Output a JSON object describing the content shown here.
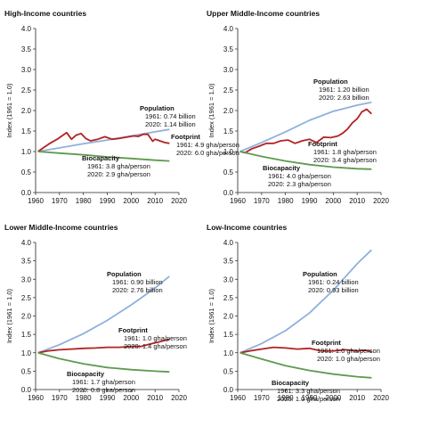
{
  "chart_data": [
    {
      "type": "line",
      "title": "High-Income countries",
      "xlabel": "",
      "ylabel": "Index (1961 = 1.0)",
      "xlim": [
        1960,
        2020
      ],
      "ylim": [
        0,
        4
      ],
      "xticks": [
        "1960",
        "1970",
        "1980",
        "1990",
        "2000",
        "2010",
        "2020"
      ],
      "yticks": [
        "0.0",
        "0.5",
        "1.0",
        "1.5",
        "2.0",
        "2.5",
        "3.0",
        "3.5",
        "4.0"
      ],
      "series": [
        {
          "name": "Population",
          "color": "#8fb0dd",
          "x": [
            1961,
            1970,
            1980,
            1990,
            2000,
            2010,
            2016
          ],
          "y": [
            1.0,
            1.09,
            1.19,
            1.28,
            1.38,
            1.48,
            1.54
          ]
        },
        {
          "name": "Footprint",
          "color": "#b22222",
          "x": [
            1961,
            1963,
            1966,
            1969,
            1971,
            1973,
            1975,
            1977,
            1979,
            1981,
            1983,
            1986,
            1989,
            1992,
            1995,
            1998,
            2001,
            2003,
            2005,
            2007,
            2009,
            2010,
            2012,
            2014,
            2016
          ],
          "y": [
            1.0,
            1.08,
            1.2,
            1.3,
            1.38,
            1.46,
            1.3,
            1.4,
            1.44,
            1.32,
            1.26,
            1.3,
            1.36,
            1.3,
            1.32,
            1.35,
            1.38,
            1.37,
            1.42,
            1.42,
            1.25,
            1.3,
            1.26,
            1.22,
            1.2
          ]
        },
        {
          "name": "Biocapacity",
          "color": "#5e9a4e",
          "x": [
            1961,
            1970,
            1980,
            1990,
            2000,
            2010,
            2016
          ],
          "y": [
            1.0,
            0.96,
            0.92,
            0.87,
            0.83,
            0.79,
            0.77
          ]
        }
      ],
      "annotations": [
        {
          "label": "Population",
          "lines": [
            "1961: 0.74 billion",
            "2020: 1.14 billion"
          ]
        },
        {
          "label": "Footprint",
          "lines": [
            "1961: 4.9 gha/person",
            "2020: 6.0 gha/person"
          ]
        },
        {
          "label": "Biocapacity",
          "lines": [
            "1961: 3.8 gha/person",
            "2020: 2.9 gha/person"
          ]
        }
      ]
    },
    {
      "type": "line",
      "title": "Upper Middle-Income countries",
      "xlabel": "",
      "ylabel": "Index (1961 = 1.0)",
      "xlim": [
        1960,
        2020
      ],
      "ylim": [
        0,
        4
      ],
      "xticks": [
        "1960",
        "1970",
        "1980",
        "1990",
        "2000",
        "2010",
        "2020"
      ],
      "yticks": [
        "0.0",
        "0.5",
        "1.0",
        "1.5",
        "2.0",
        "2.5",
        "3.0",
        "3.5",
        "4.0"
      ],
      "series": [
        {
          "name": "Population",
          "color": "#8fb0dd",
          "x": [
            1961,
            1970,
            1980,
            1990,
            2000,
            2010,
            2016
          ],
          "y": [
            1.0,
            1.22,
            1.48,
            1.76,
            1.98,
            2.13,
            2.2
          ]
        },
        {
          "name": "Footprint",
          "color": "#b22222",
          "x": [
            1961,
            1963,
            1966,
            1969,
            1972,
            1975,
            1978,
            1981,
            1984,
            1987,
            1990,
            1993,
            1996,
            1999,
            2002,
            2004,
            2006,
            2008,
            2010,
            2012,
            2014,
            2016
          ],
          "y": [
            1.0,
            0.97,
            1.07,
            1.13,
            1.2,
            1.2,
            1.26,
            1.28,
            1.2,
            1.26,
            1.3,
            1.22,
            1.35,
            1.34,
            1.38,
            1.45,
            1.55,
            1.7,
            1.8,
            1.97,
            2.03,
            1.92
          ]
        },
        {
          "name": "Biocapacity",
          "color": "#5e9a4e",
          "x": [
            1961,
            1970,
            1980,
            1990,
            2000,
            2010,
            2016
          ],
          "y": [
            1.0,
            0.88,
            0.77,
            0.68,
            0.62,
            0.58,
            0.57
          ]
        }
      ],
      "annotations": [
        {
          "label": "Population",
          "lines": [
            "1961: 1.20 billion",
            "2020: 2.63 billion"
          ]
        },
        {
          "label": "Footprint",
          "lines": [
            "1961: 1.8 gha/person",
            "2020: 3.4 gha/person"
          ]
        },
        {
          "label": "Biocapacity",
          "lines": [
            "1961: 4.0 gha/person",
            "2020: 2.3 gha/person"
          ]
        }
      ]
    },
    {
      "type": "line",
      "title": "Lower Middle-Income countries",
      "xlabel": "",
      "ylabel": "Index (1961 = 1.0)",
      "xlim": [
        1960,
        2020
      ],
      "ylim": [
        0,
        4
      ],
      "xticks": [
        "1960",
        "1970",
        "1980",
        "1990",
        "2000",
        "2010",
        "2020"
      ],
      "yticks": [
        "0.0",
        "0.5",
        "1.0",
        "1.5",
        "2.0",
        "2.5",
        "3.0",
        "3.5",
        "4.0"
      ],
      "series": [
        {
          "name": "Population",
          "color": "#8fb0dd",
          "x": [
            1961,
            1970,
            1980,
            1990,
            2000,
            2010,
            2016
          ],
          "y": [
            1.0,
            1.22,
            1.52,
            1.88,
            2.3,
            2.76,
            3.08
          ]
        },
        {
          "name": "Footprint",
          "color": "#b22222",
          "x": [
            1961,
            1965,
            1970,
            1975,
            1980,
            1985,
            1990,
            1995,
            2000,
            2004,
            2008,
            2012,
            2016
          ],
          "y": [
            1.0,
            1.05,
            1.08,
            1.1,
            1.12,
            1.13,
            1.15,
            1.15,
            1.17,
            1.17,
            1.24,
            1.3,
            1.37
          ]
        },
        {
          "name": "Biocapacity",
          "color": "#5e9a4e",
          "x": [
            1961,
            1970,
            1980,
            1990,
            2000,
            2010,
            2016
          ],
          "y": [
            1.0,
            0.84,
            0.7,
            0.6,
            0.54,
            0.5,
            0.48
          ]
        }
      ],
      "annotations": [
        {
          "label": "Population",
          "lines": [
            "1961: 0.90 billion",
            "2020: 2.76 billion"
          ]
        },
        {
          "label": "Footprint",
          "lines": [
            "1961: 1.0 gha/person",
            "2020: 1.4 gha/person"
          ]
        },
        {
          "label": "Biocapacity",
          "lines": [
            "1961: 1.7 gha/person",
            "2020: 0.8 gha/person"
          ]
        }
      ]
    },
    {
      "type": "line",
      "title": "Low-Income countries",
      "xlabel": "",
      "ylabel": "Index (1961 = 1.0)",
      "xlim": [
        1960,
        2020
      ],
      "ylim": [
        0,
        4
      ],
      "xticks": [
        "1960",
        "1970",
        "1980",
        "1990",
        "2000",
        "2010",
        "2020"
      ],
      "yticks": [
        "0.0",
        "0.5",
        "1.0",
        "1.5",
        "2.0",
        "2.5",
        "3.0",
        "3.5",
        "4.0"
      ],
      "series": [
        {
          "name": "Population",
          "color": "#8fb0dd",
          "x": [
            1961,
            1970,
            1980,
            1990,
            2000,
            2010,
            2016
          ],
          "y": [
            1.0,
            1.25,
            1.6,
            2.08,
            2.7,
            3.42,
            3.8
          ]
        },
        {
          "name": "Footprint",
          "color": "#b22222",
          "x": [
            1961,
            1965,
            1970,
            1975,
            1980,
            1985,
            1990,
            1995,
            2000,
            2005,
            2010,
            2013,
            2016
          ],
          "y": [
            1.0,
            1.05,
            1.1,
            1.15,
            1.13,
            1.1,
            1.12,
            1.05,
            1.05,
            1.08,
            1.05,
            1.07,
            1.03
          ]
        },
        {
          "name": "Biocapacity",
          "color": "#5e9a4e",
          "x": [
            1961,
            1970,
            1980,
            1990,
            2000,
            2010,
            2016
          ],
          "y": [
            1.0,
            0.83,
            0.65,
            0.52,
            0.42,
            0.35,
            0.32
          ]
        }
      ],
      "annotations": [
        {
          "label": "Population",
          "lines": [
            "1961: 0.24 billion",
            "2020: 0.93 billion"
          ]
        },
        {
          "label": "Footprint",
          "lines": [
            "1961: 1.0 gha/person",
            "2020: 1.0 gha/person"
          ]
        },
        {
          "label": "Biocapacity",
          "lines": [
            "1961: 3.3 gha/person",
            "2020: 1.0 gha/person"
          ]
        }
      ]
    }
  ]
}
